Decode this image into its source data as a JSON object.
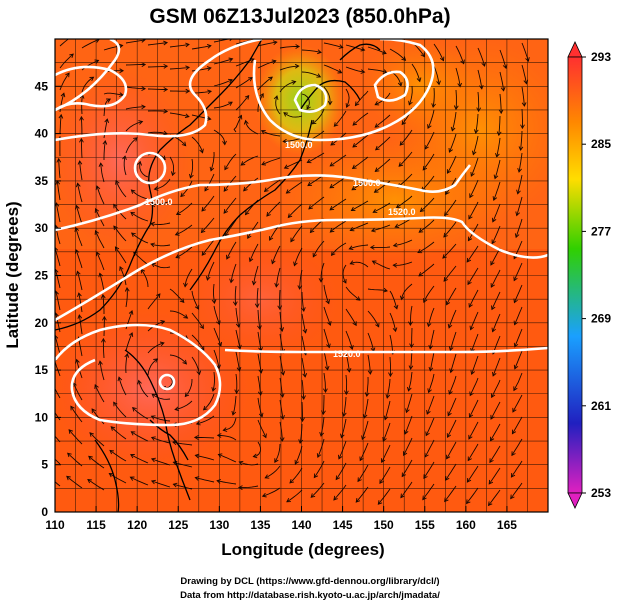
{
  "title": "GSM 06Z13Jul2023 (850.0hPa)",
  "axes": {
    "xlabel": "Longitude (degrees)",
    "ylabel": "Latitude  (degrees)",
    "xlim": [
      110,
      170
    ],
    "ylim": [
      0,
      50
    ],
    "xticks": [
      "110",
      "115",
      "120",
      "125",
      "130",
      "135",
      "140",
      "145",
      "150",
      "155",
      "160",
      "165"
    ],
    "yticks": [
      "0",
      "5",
      "10",
      "15",
      "20",
      "25",
      "30",
      "35",
      "40",
      "45"
    ]
  },
  "colorbar": {
    "ticks": [
      "253",
      "261",
      "269",
      "277",
      "285",
      "293"
    ],
    "min": 253,
    "max": 293,
    "colors": [
      "#e020c0",
      "#2020c0",
      "#1aa0ff",
      "#30d000",
      "#ffdd00",
      "#ff8800",
      "#ff3030"
    ]
  },
  "contours": {
    "labels": [
      "1500.0",
      "1500.0",
      "1500.0",
      "1520.0",
      "1520.0"
    ]
  },
  "credits": {
    "line1": "Drawing by DCL (https://www.gfd-dennou.org/library/dcl/)",
    "line2": "Data from http://database.rish.kyoto-u.ac.jp/arch/jmadata/"
  }
}
